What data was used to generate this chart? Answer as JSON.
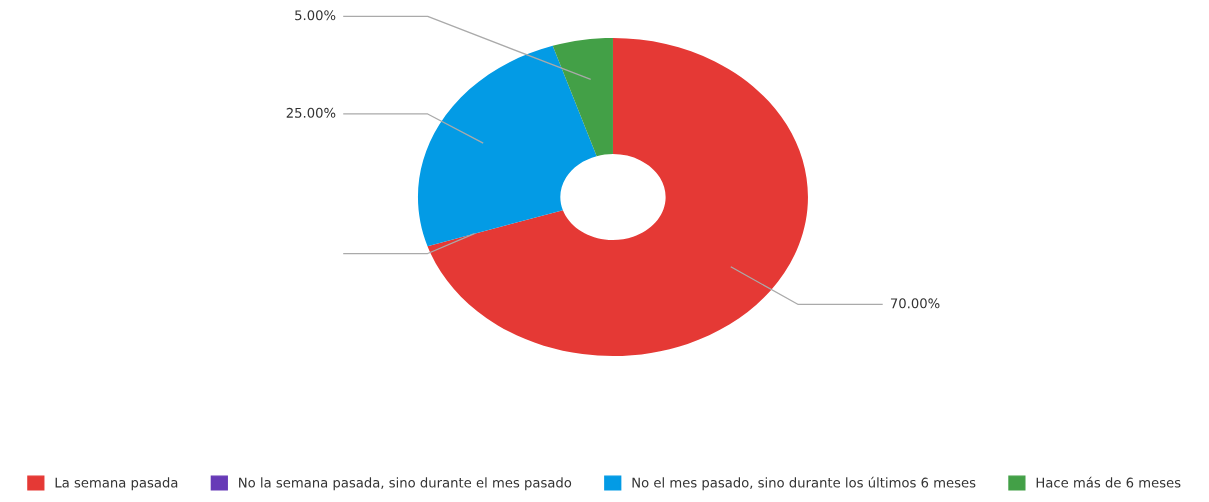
{
  "chart_data": {
    "type": "donut",
    "categories": [
      "La semana pasada",
      "No la semana pasada, sino durante el mes pasado",
      "No el mes pasado, sino durante los últimos 6 meses",
      "Hace más de 6 meses"
    ],
    "values": [
      70,
      0,
      25,
      5
    ],
    "colors": [
      "#e53935",
      "#673ab7",
      "#039be5",
      "#43a047"
    ],
    "value_labels": [
      "70.00%",
      null,
      "25.00%",
      "5.00%"
    ],
    "legend": "bottom"
  }
}
